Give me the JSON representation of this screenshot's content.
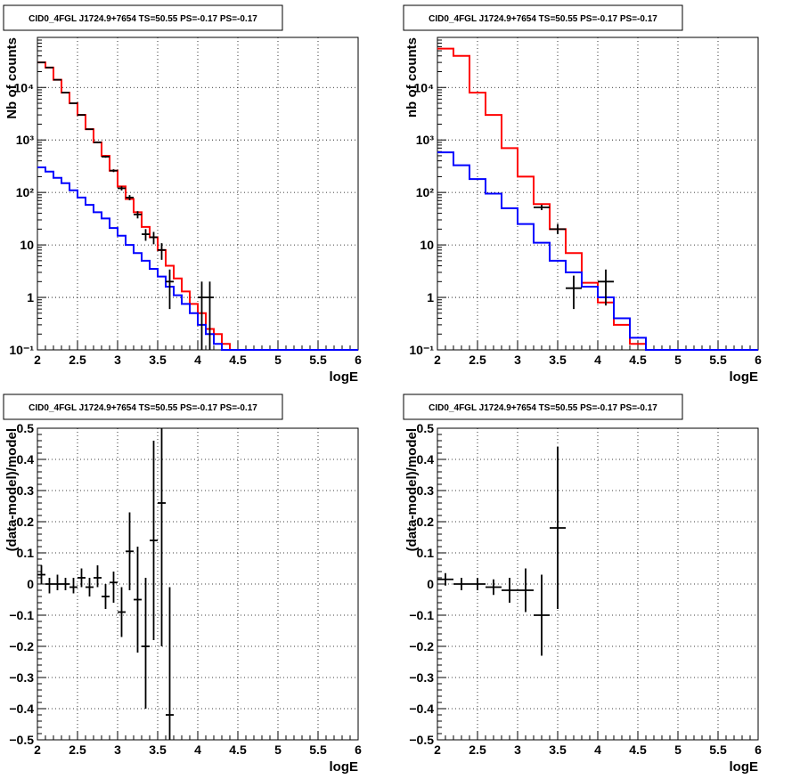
{
  "chart_data": [
    {
      "type": "line",
      "title": "CID0_4FGL J1724.9+7654 TS=50.55 PS=-0.17 PS=-0.17",
      "xlabel": "logE",
      "ylabel": "Nb of counts",
      "xlim": [
        2,
        6
      ],
      "ylim": [
        0.1,
        90000
      ],
      "yscale": "log",
      "grid": true,
      "x_ticks": [
        "2",
        "2.5",
        "3",
        "3.5",
        "4",
        "4.5",
        "5",
        "5.5",
        "6"
      ],
      "y_ticks": [
        {
          "v": 0.1,
          "label": "10⁻¹"
        },
        {
          "v": 1,
          "label": "1"
        },
        {
          "v": 10,
          "label": "10"
        },
        {
          "v": 100,
          "label": "10²"
        },
        {
          "v": 1000,
          "label": "10³"
        },
        {
          "v": 10000,
          "label": "10⁴"
        }
      ],
      "series": [
        {
          "color": "#ff0000",
          "style": "hist",
          "edges": [
            2.0,
            2.1,
            2.2,
            2.3,
            2.4,
            2.5,
            2.6,
            2.7,
            2.8,
            2.9,
            3.0,
            3.1,
            3.2,
            3.3,
            3.4,
            3.5,
            3.6,
            3.7,
            3.8,
            3.9,
            4.0,
            4.1,
            4.2,
            4.3,
            4.4,
            4.5,
            4.6,
            4.7,
            4.8,
            4.9,
            5.0,
            5.1,
            5.2,
            5.3,
            5.4,
            5.5,
            5.6,
            5.7,
            5.8,
            5.9,
            6.0
          ],
          "values": [
            30000,
            24000,
            14000,
            8000,
            5000,
            3000,
            1600,
            900,
            500,
            260,
            130,
            75,
            42,
            22,
            14,
            8,
            4,
            2.3,
            1.3,
            0.75,
            0.5,
            0.25,
            0.2,
            0.13,
            0.1,
            0.1,
            0.1,
            0.1,
            0.1,
            0.1,
            0.1,
            0.1,
            0.1,
            0.1,
            0.1,
            0.1,
            0.1,
            0.1,
            0.1,
            0.1
          ]
        },
        {
          "color": "#0000ff",
          "style": "hist",
          "edges": [
            2.0,
            2.1,
            2.2,
            2.3,
            2.4,
            2.5,
            2.6,
            2.7,
            2.8,
            2.9,
            3.0,
            3.1,
            3.2,
            3.3,
            3.4,
            3.5,
            3.6,
            3.7,
            3.8,
            3.9,
            4.0,
            4.1,
            4.2,
            4.3,
            4.4,
            4.5,
            4.6,
            4.7,
            4.8,
            4.9,
            5.0,
            5.1,
            5.2,
            5.3,
            5.4,
            5.5,
            5.6,
            5.7,
            5.8,
            5.9,
            6.0
          ],
          "values": [
            300,
            250,
            190,
            150,
            110,
            80,
            58,
            42,
            32,
            21,
            15,
            10,
            7,
            5,
            3.5,
            2.5,
            1.6,
            1.1,
            0.75,
            0.5,
            0.3,
            0.2,
            0.13,
            0.1,
            0.1,
            0.1,
            0.1,
            0.1,
            0.1,
            0.1,
            0.1,
            0.1,
            0.1,
            0.1,
            0.1,
            0.1,
            0.1,
            0.1,
            0.1,
            0.1
          ]
        },
        {
          "color": "#000000",
          "style": "errorbar",
          "points": [
            {
              "x": 2.05,
              "y": 30000,
              "lo": 29800,
              "hi": 30200,
              "xerr": 0.05
            },
            {
              "x": 2.15,
              "y": 24000,
              "lo": 23800,
              "hi": 24200,
              "xerr": 0.05
            },
            {
              "x": 2.25,
              "y": 14000,
              "lo": 13880,
              "hi": 14120,
              "xerr": 0.05
            },
            {
              "x": 2.35,
              "y": 8000,
              "lo": 7910,
              "hi": 8090,
              "xerr": 0.05
            },
            {
              "x": 2.45,
              "y": 5000,
              "lo": 4930,
              "hi": 5070,
              "xerr": 0.05
            },
            {
              "x": 2.55,
              "y": 3000,
              "lo": 2945,
              "hi": 3055,
              "xerr": 0.05
            },
            {
              "x": 2.65,
              "y": 1600,
              "lo": 1560,
              "hi": 1640,
              "xerr": 0.05
            },
            {
              "x": 2.75,
              "y": 900,
              "lo": 870,
              "hi": 930,
              "xerr": 0.05
            },
            {
              "x": 2.85,
              "y": 480,
              "lo": 458,
              "hi": 502,
              "xerr": 0.05
            },
            {
              "x": 2.95,
              "y": 260,
              "lo": 244,
              "hi": 276,
              "xerr": 0.05
            },
            {
              "x": 3.05,
              "y": 120,
              "lo": 109,
              "hi": 131,
              "xerr": 0.05
            },
            {
              "x": 3.15,
              "y": 80,
              "lo": 71,
              "hi": 89,
              "xerr": 0.05
            },
            {
              "x": 3.25,
              "y": 38,
              "lo": 32,
              "hi": 44,
              "xerr": 0.05
            },
            {
              "x": 3.35,
              "y": 16,
              "lo": 12,
              "hi": 20,
              "xerr": 0.05
            },
            {
              "x": 3.45,
              "y": 14,
              "lo": 10.3,
              "hi": 17.7,
              "xerr": 0.05
            },
            {
              "x": 3.55,
              "y": 8,
              "lo": 5.2,
              "hi": 10.8,
              "xerr": 0.05
            },
            {
              "x": 3.65,
              "y": 2,
              "lo": 0.6,
              "hi": 3.4,
              "xerr": 0.05
            },
            {
              "x": 4.05,
              "y": 1,
              "lo": 0.1,
              "hi": 2,
              "xerr": 0.05
            },
            {
              "x": 4.15,
              "y": 1,
              "lo": 0.1,
              "hi": 2,
              "xerr": 0.05
            }
          ]
        }
      ]
    },
    {
      "type": "line",
      "title": "CID0_4FGL J1724.9+7654 TS=50.55 PS=-0.17 PS=-0.17",
      "xlabel": "logE",
      "ylabel": "nb of counts",
      "xlim": [
        2,
        6
      ],
      "ylim": [
        0.1,
        90000
      ],
      "yscale": "log",
      "grid": true,
      "x_ticks": [
        "2",
        "2.5",
        "3",
        "3.5",
        "4",
        "4.5",
        "5",
        "5.5",
        "6"
      ],
      "y_ticks": [
        {
          "v": 0.1,
          "label": "10⁻¹"
        },
        {
          "v": 1,
          "label": "1"
        },
        {
          "v": 10,
          "label": "10"
        },
        {
          "v": 100,
          "label": "10²"
        },
        {
          "v": 1000,
          "label": "10³"
        },
        {
          "v": 10000,
          "label": "10⁴"
        }
      ],
      "series": [
        {
          "color": "#ff0000",
          "style": "hist",
          "edges": [
            2.0,
            2.2,
            2.4,
            2.6,
            2.8,
            3.0,
            3.2,
            3.4,
            3.6,
            3.8,
            4.0,
            4.2,
            4.4,
            4.6,
            4.8,
            5.0,
            5.2,
            5.4,
            5.6,
            5.8,
            6.0
          ],
          "values": [
            55000,
            40000,
            8000,
            3000,
            700,
            200,
            60,
            20,
            7,
            1.9,
            0.8,
            0.3,
            0.13,
            0.1,
            0.1,
            0.1,
            0.1,
            0.1,
            0.1,
            0.1
          ]
        },
        {
          "color": "#0000ff",
          "style": "hist",
          "edges": [
            2.0,
            2.2,
            2.4,
            2.6,
            2.8,
            3.0,
            3.2,
            3.4,
            3.6,
            3.8,
            4.0,
            4.2,
            4.4,
            4.6,
            4.8,
            5.0,
            5.2,
            5.4,
            5.6,
            5.8,
            6.0
          ],
          "values": [
            580,
            330,
            180,
            95,
            50,
            25,
            11,
            5,
            3,
            1.6,
            1,
            0.4,
            0.17,
            0.1,
            0.1,
            0.1,
            0.1,
            0.1,
            0.1,
            0.1
          ]
        },
        {
          "color": "#000000",
          "style": "errorbar",
          "points": [
            {
              "x": 3.3,
              "y": 52,
              "lo": 46,
              "hi": 58,
              "xerr": 0.1
            },
            {
              "x": 3.5,
              "y": 20,
              "lo": 16,
              "hi": 25,
              "xerr": 0.1
            },
            {
              "x": 3.7,
              "y": 1.5,
              "lo": 0.6,
              "hi": 2.6,
              "xerr": 0.1
            },
            {
              "x": 4.1,
              "y": 2,
              "lo": 0.7,
              "hi": 3.4,
              "xerr": 0.1
            }
          ]
        }
      ]
    },
    {
      "type": "scatter",
      "title": "CID0_4FGL J1724.9+7654 TS=50.55 PS=-0.17 PS=-0.17",
      "xlabel": "logE",
      "ylabel": "(data-model)/model",
      "xlim": [
        2,
        6
      ],
      "ylim": [
        -0.5,
        0.5
      ],
      "yscale": "linear",
      "grid": true,
      "x_ticks": [
        "2",
        "2.5",
        "3",
        "3.5",
        "4",
        "4.5",
        "5",
        "5.5",
        "6"
      ],
      "y_ticks": [
        {
          "v": -0.5,
          "label": "−0.5"
        },
        {
          "v": -0.4,
          "label": "−0.4"
        },
        {
          "v": -0.3,
          "label": "−0.3"
        },
        {
          "v": -0.2,
          "label": "−0.2"
        },
        {
          "v": -0.1,
          "label": "−0.1"
        },
        {
          "v": 0,
          "label": "0"
        },
        {
          "v": 0.1,
          "label": "0.1"
        },
        {
          "v": 0.2,
          "label": "0.2"
        },
        {
          "v": 0.3,
          "label": "0.3"
        },
        {
          "v": 0.4,
          "label": "0.4"
        },
        {
          "v": 0.5,
          "label": "0.5"
        }
      ],
      "series": [
        {
          "color": "#000000",
          "style": "errorbar",
          "points": [
            {
              "x": 2.05,
              "y": 0.03,
              "lo": 0.0,
              "hi": 0.06,
              "xerr": 0.05
            },
            {
              "x": 2.15,
              "y": 0.0,
              "lo": -0.03,
              "hi": 0.02,
              "xerr": 0.05
            },
            {
              "x": 2.25,
              "y": 0.0,
              "lo": -0.02,
              "hi": 0.03,
              "xerr": 0.05
            },
            {
              "x": 2.35,
              "y": 0.0,
              "lo": -0.02,
              "hi": 0.02,
              "xerr": 0.05
            },
            {
              "x": 2.45,
              "y": -0.01,
              "lo": -0.03,
              "hi": 0.02,
              "xerr": 0.05
            },
            {
              "x": 2.55,
              "y": 0.02,
              "lo": -0.01,
              "hi": 0.05,
              "xerr": 0.05
            },
            {
              "x": 2.65,
              "y": -0.01,
              "lo": -0.04,
              "hi": 0.02,
              "xerr": 0.05
            },
            {
              "x": 2.75,
              "y": 0.02,
              "lo": -0.01,
              "hi": 0.06,
              "xerr": 0.05
            },
            {
              "x": 2.85,
              "y": -0.04,
              "lo": -0.08,
              "hi": 0.0,
              "xerr": 0.05
            },
            {
              "x": 2.95,
              "y": 0.005,
              "lo": -0.06,
              "hi": 0.04,
              "xerr": 0.05
            },
            {
              "x": 3.05,
              "y": -0.09,
              "lo": -0.17,
              "hi": -0.01,
              "xerr": 0.05
            },
            {
              "x": 3.15,
              "y": 0.105,
              "lo": -0.02,
              "hi": 0.23,
              "xerr": 0.05
            },
            {
              "x": 3.25,
              "y": -0.05,
              "lo": -0.22,
              "hi": 0.12,
              "xerr": 0.05
            },
            {
              "x": 3.35,
              "y": -0.2,
              "lo": -0.4,
              "hi": 0.02,
              "xerr": 0.05
            },
            {
              "x": 3.45,
              "y": 0.14,
              "lo": -0.18,
              "hi": 0.46,
              "xerr": 0.05
            },
            {
              "x": 3.55,
              "y": 0.26,
              "lo": -0.2,
              "hi": 0.5,
              "xerr": 0.05
            },
            {
              "x": 3.65,
              "y": -0.42,
              "lo": -0.5,
              "hi": -0.01,
              "xerr": 0.05
            }
          ]
        }
      ]
    },
    {
      "type": "scatter",
      "title": "CID0_4FGL J1724.9+7654 TS=50.55 PS=-0.17 PS=-0.17",
      "xlabel": "logE",
      "ylabel": "(data-model)/model",
      "xlim": [
        2,
        6
      ],
      "ylim": [
        -0.5,
        0.5
      ],
      "yscale": "linear",
      "grid": true,
      "x_ticks": [
        "2",
        "2.5",
        "3",
        "3.5",
        "4",
        "4.5",
        "5",
        "5.5",
        "6"
      ],
      "y_ticks": [
        {
          "v": -0.5,
          "label": "−0.5"
        },
        {
          "v": -0.4,
          "label": "−0.4"
        },
        {
          "v": -0.3,
          "label": "−0.3"
        },
        {
          "v": -0.2,
          "label": "−0.2"
        },
        {
          "v": -0.1,
          "label": "−0.1"
        },
        {
          "v": 0,
          "label": "0"
        },
        {
          "v": 0.1,
          "label": "0.1"
        },
        {
          "v": 0.2,
          "label": "0.2"
        },
        {
          "v": 0.3,
          "label": "0.3"
        },
        {
          "v": 0.4,
          "label": "0.4"
        },
        {
          "v": 0.5,
          "label": "0.5"
        }
      ],
      "series": [
        {
          "color": "#000000",
          "style": "errorbar",
          "points": [
            {
              "x": 2.1,
              "y": 0.015,
              "lo": -0.005,
              "hi": 0.035,
              "xerr": 0.1
            },
            {
              "x": 2.3,
              "y": 0.0,
              "lo": -0.02,
              "hi": 0.02,
              "xerr": 0.1
            },
            {
              "x": 2.5,
              "y": 0.0,
              "lo": -0.02,
              "hi": 0.02,
              "xerr": 0.1
            },
            {
              "x": 2.7,
              "y": -0.01,
              "lo": -0.035,
              "hi": 0.015,
              "xerr": 0.1
            },
            {
              "x": 2.9,
              "y": -0.02,
              "lo": -0.06,
              "hi": 0.02,
              "xerr": 0.1
            },
            {
              "x": 3.1,
              "y": -0.02,
              "lo": -0.09,
              "hi": 0.05,
              "xerr": 0.1
            },
            {
              "x": 3.3,
              "y": -0.1,
              "lo": -0.23,
              "hi": 0.03,
              "xerr": 0.1
            },
            {
              "x": 3.5,
              "y": 0.18,
              "lo": -0.08,
              "hi": 0.44,
              "xerr": 0.1
            }
          ]
        }
      ]
    }
  ]
}
